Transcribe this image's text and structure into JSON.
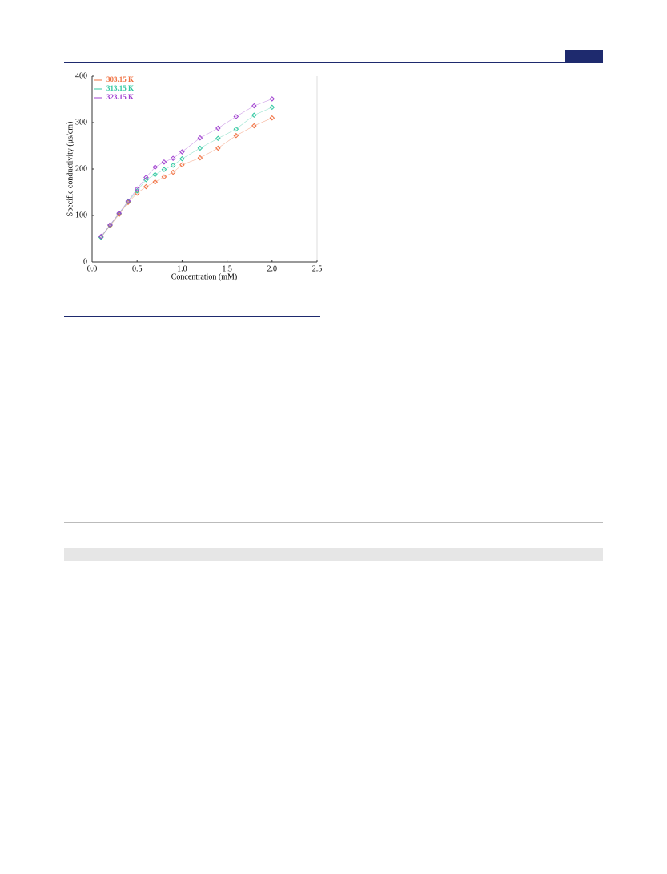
{
  "chart_data": {
    "type": "scatter",
    "x_label": "Concentration (mM)",
    "y_label": "Specific conductivity (μs/cm)",
    "x": [
      0.1,
      0.2,
      0.3,
      0.4,
      0.5,
      0.6,
      0.7,
      0.8,
      0.9,
      1.0,
      1.2,
      1.4,
      1.6,
      1.8,
      2.0
    ],
    "series": [
      {
        "name": "303.15 K",
        "color": "#f07040",
        "values": [
          53,
          78,
          102,
          128,
          148,
          162,
          172,
          183,
          193,
          209,
          224,
          245,
          272,
          293,
          310
        ]
      },
      {
        "name": "313.15 K",
        "color": "#30c8a0",
        "values": [
          53,
          79,
          104,
          130,
          153,
          177,
          188,
          199,
          208,
          222,
          245,
          266,
          286,
          316,
          333
        ]
      },
      {
        "name": "323.15 K",
        "color": "#a040d0",
        "values": [
          55,
          80,
          105,
          131,
          157,
          182,
          204,
          215,
          223,
          237,
          267,
          288,
          313,
          336,
          351
        ]
      }
    ],
    "xlim": [
      0,
      2.5
    ],
    "ylim": [
      0,
      400
    ],
    "xticks": [
      {
        "value": 0,
        "label": "0.0"
      },
      {
        "value": 0.5,
        "label": "0.5"
      },
      {
        "value": 1,
        "label": "1.0"
      },
      {
        "value": 1.5,
        "label": "1.5"
      },
      {
        "value": 2,
        "label": "2.0"
      },
      {
        "value": 2.5,
        "label": "2.5"
      }
    ],
    "yticks": [
      0,
      100,
      200,
      300,
      400
    ]
  }
}
